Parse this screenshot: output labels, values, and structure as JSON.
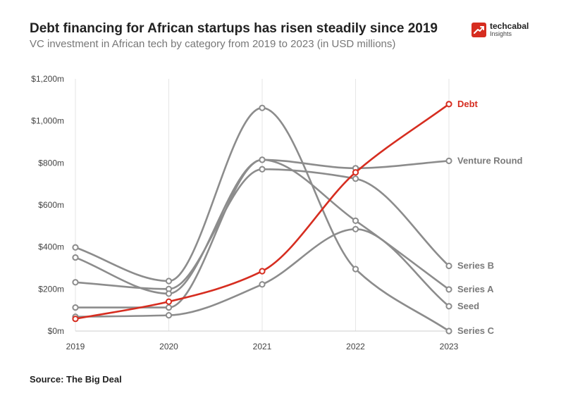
{
  "header": {
    "title": "Debt financing for African startups has risen steadily since 2019",
    "subtitle": "VC investment in African tech by category from 2019 to 2023 (in USD millions)"
  },
  "logo": {
    "name": "techcabal",
    "sub": "Insights",
    "color": "#d62d20"
  },
  "footer": {
    "source": "Source: The Big Deal"
  },
  "chart_data": {
    "type": "line",
    "title": "Debt financing for African startups has risen steadily since 2019",
    "subtitle": "VC investment in African tech by category from 2019 to 2023 (in USD millions)",
    "xlabel": "",
    "ylabel": "",
    "categories": [
      "2019",
      "2020",
      "2021",
      "2022",
      "2023"
    ],
    "ylim": [
      0,
      1200
    ],
    "yticks": [
      0,
      200,
      400,
      600,
      800,
      1000,
      1200
    ],
    "ytick_labels": [
      "$0m",
      "$200m",
      "$400m",
      "$600m",
      "$800m",
      "$1,000m",
      "$1,200m"
    ],
    "grid": "vertical",
    "highlight_color": "#d62d20",
    "muted_color": "#8c8c8c",
    "series": [
      {
        "name": "Venture Round",
        "values": [
          112,
          112,
          815,
          775,
          810
        ],
        "highlight": false
      },
      {
        "name": "Series B",
        "values": [
          232,
          200,
          770,
          725,
          310
        ],
        "highlight": false
      },
      {
        "name": "Series A",
        "values": [
          350,
          178,
          815,
          525,
          198
        ],
        "highlight": false
      },
      {
        "name": "Seed",
        "values": [
          68,
          75,
          222,
          485,
          118
        ],
        "highlight": false
      },
      {
        "name": "Series C",
        "values": [
          398,
          238,
          1062,
          295,
          0
        ],
        "highlight": false
      },
      {
        "name": "Debt",
        "values": [
          58,
          140,
          285,
          755,
          1080
        ],
        "highlight": true
      }
    ]
  }
}
